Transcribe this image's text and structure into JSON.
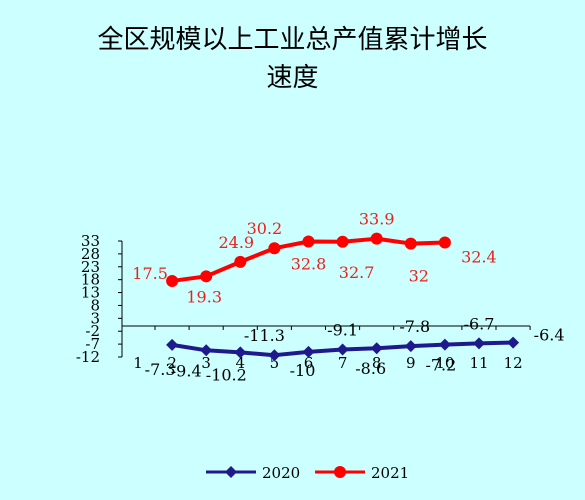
{
  "chart_data": {
    "type": "line",
    "title": [
      "全区规模以上工业总产值累计增长",
      "速度"
    ],
    "x": [
      "1",
      "2",
      "3",
      "4",
      "5",
      "6",
      "7",
      "8",
      "9",
      "10",
      "11",
      "12"
    ],
    "y_ticks": [
      "33",
      "28",
      "23",
      "18",
      "13",
      "8",
      "3",
      "-2",
      "-7",
      "-12"
    ],
    "ylim": [
      -12,
      33
    ],
    "series": [
      {
        "name": "2020",
        "color": "#1f1a8c",
        "x": [
          "2",
          "3",
          "4",
          "5",
          "6",
          "7",
          "8",
          "9",
          "10",
          "11",
          "12"
        ],
        "values": [
          -7.3,
          -9.4,
          -10.2,
          -11.3,
          -10,
          -9.1,
          -8.6,
          -7.8,
          -7.2,
          -6.7,
          -6.4
        ],
        "labels": [
          "-7.3",
          "-9.4",
          "-10.2",
          "-11.3",
          "-10",
          "-9.1",
          "-8.6",
          "-7.8",
          "-7.2",
          "-6.7",
          "-6.4"
        ]
      },
      {
        "name": "2021",
        "color": "#ff0000",
        "x": [
          "2",
          "3",
          "4",
          "5",
          "6",
          "7",
          "8",
          "9",
          "10"
        ],
        "values": [
          17.5,
          19.3,
          24.9,
          30.2,
          32.8,
          32.7,
          33.9,
          32,
          32.4
        ],
        "labels": [
          "17.5",
          "19.3",
          "24.9",
          "30.2",
          "32.8",
          "32.7",
          "33.9",
          "32",
          "32.4"
        ]
      }
    ],
    "legend": "bottom"
  }
}
